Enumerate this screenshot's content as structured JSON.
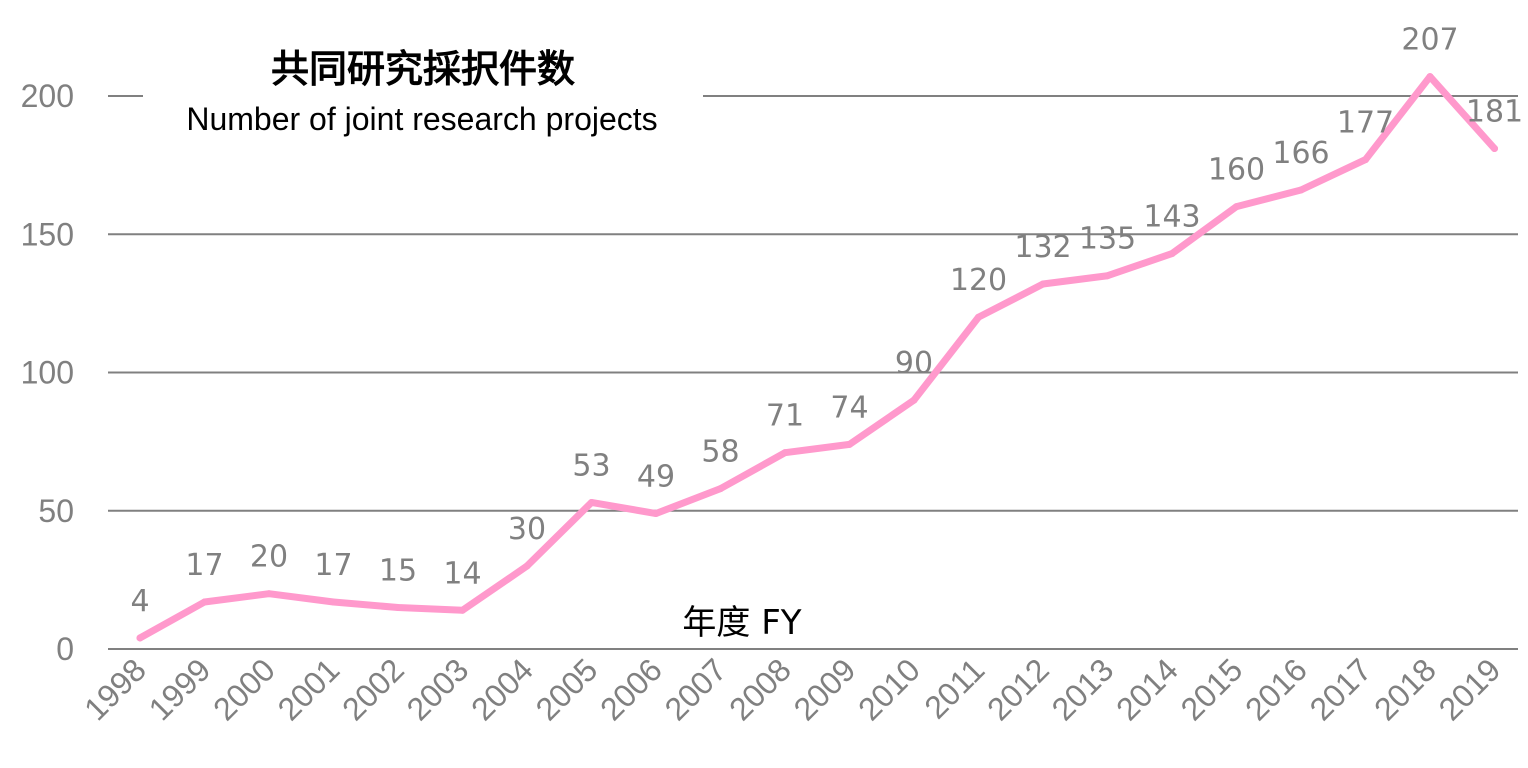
{
  "chart_data": {
    "type": "line",
    "title": "共同研究採択件数",
    "subtitle": "Number of joint research projects",
    "xlabel": "年度 FY",
    "ylabel": "",
    "ylim": [
      0,
      200
    ],
    "yticks": [
      "0",
      "50",
      "100",
      "150",
      "200"
    ],
    "grid": true,
    "categories": [
      "1998",
      "1999",
      "2000",
      "2001",
      "2002",
      "2003",
      "2004",
      "2005",
      "2006",
      "2007",
      "2008",
      "2009",
      "2010",
      "2011",
      "2012",
      "2013",
      "2014",
      "2015",
      "2016",
      "2017",
      "2018",
      "2019"
    ],
    "series": [
      {
        "name": "Number of joint research projects",
        "values": [
          4,
          17,
          20,
          17,
          15,
          14,
          30,
          53,
          49,
          58,
          71,
          74,
          90,
          120,
          132,
          135,
          143,
          160,
          166,
          177,
          207,
          181
        ],
        "color": "#ff99cc"
      }
    ],
    "label_color": "#808080",
    "grid_color": "#808080"
  }
}
